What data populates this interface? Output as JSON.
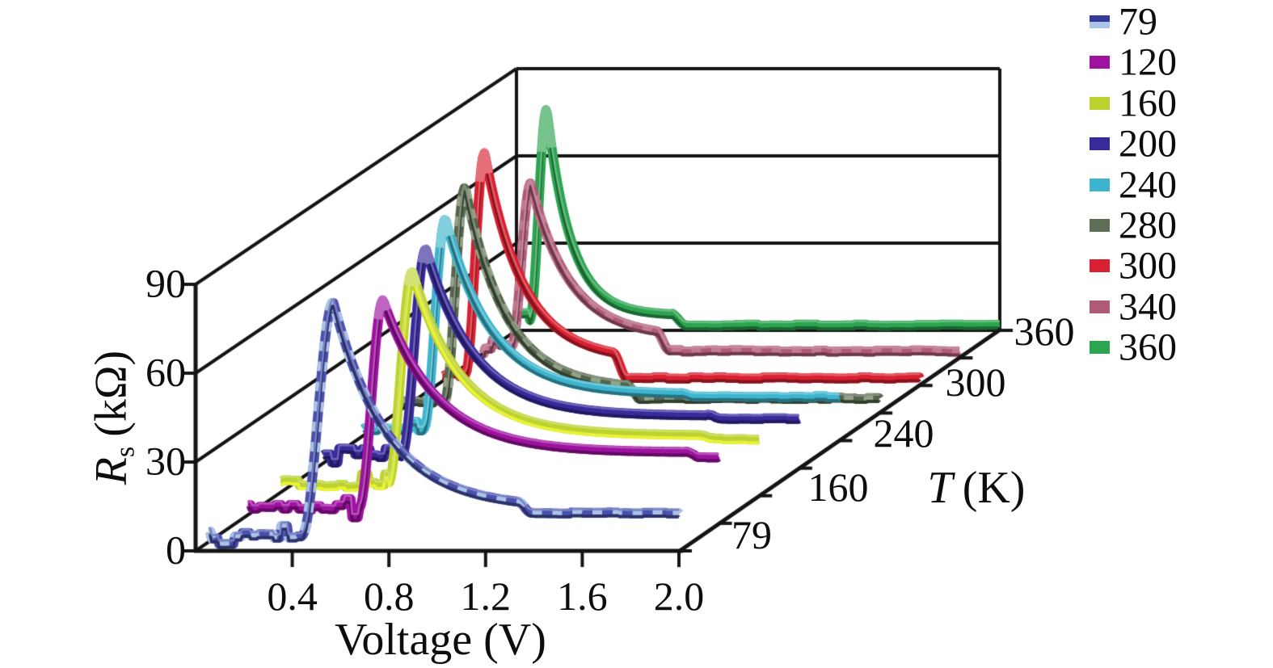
{
  "figure": {
    "background": "#ffffff",
    "line_color": "#141414",
    "text_color": "#0d0d0d"
  },
  "chart_data": {
    "type": "line",
    "projection": "3d-waterfall",
    "title": "",
    "x_axis": {
      "label": "Voltage (V)",
      "ticks": [
        0.4,
        0.8,
        1.2,
        1.6,
        2.0
      ],
      "range": [
        0,
        2.0
      ]
    },
    "z_axis": {
      "symbol": "R",
      "subscript": "s",
      "unit": "(kΩ)",
      "ticks": [
        0,
        30,
        60,
        90
      ],
      "range": [
        0,
        90
      ]
    },
    "t_axis": {
      "symbol": "T",
      "unit": "(K)",
      "tick_labels": [
        "79",
        "160",
        "240",
        "300",
        "360"
      ]
    },
    "legend": {
      "entries": [
        {
          "label": "79",
          "colors": [
            "#333d99",
            "#a9c4e6"
          ]
        },
        {
          "label": "120",
          "colors": [
            "#9e12a0"
          ]
        },
        {
          "label": "160",
          "colors": [
            "#bcd22f"
          ]
        },
        {
          "label": "200",
          "colors": [
            "#382a9b"
          ]
        },
        {
          "label": "240",
          "colors": [
            "#3eb5ce"
          ]
        },
        {
          "label": "280",
          "colors": [
            "#5d6e55"
          ]
        },
        {
          "label": "300",
          "colors": [
            "#d92030"
          ]
        },
        {
          "label": "340",
          "colors": [
            "#b05b76"
          ]
        },
        {
          "label": "360",
          "colors": [
            "#2da450"
          ]
        }
      ]
    },
    "series": [
      {
        "temperature_K": 79,
        "depth_index": 0,
        "color": "#4a50ae",
        "stripe": "#a9c4e6",
        "edge_bottom": null,
        "baseline_kohm": 5.2,
        "v_start_V": 0.055,
        "rise_width_V": 0.13,
        "v_peak_V": 0.57,
        "r_peak_kohm": 84,
        "decay_tau_V": 0.22,
        "plateau_kohm": 14.5,
        "v_step_V": 1.33,
        "r_tail_kohm": 12.8,
        "v_end_V": 2.0
      },
      {
        "temperature_K": 120,
        "depth_index": 1,
        "color": "#9e12a0",
        "stripe": null,
        "edge_bottom": null,
        "baseline_kohm": 5.0,
        "v_start_V": 0.05,
        "rise_width_V": 0.1,
        "v_peak_V": 0.61,
        "r_peak_kohm": 75.5,
        "decay_tau_V": 0.22,
        "plateau_kohm": 24.0,
        "v_step_V": 1.86,
        "r_tail_kohm": 22.5,
        "v_end_V": 2.0
      },
      {
        "temperature_K": 160,
        "depth_index": 2,
        "color": "#bcd22f",
        "stripe": null,
        "edge_bottom": "#e9f238",
        "baseline_kohm": 4.2,
        "v_start_V": 0.02,
        "rise_width_V": 0.1,
        "v_peak_V": 0.565,
        "r_peak_kohm": 76,
        "decay_tau_V": 0.2,
        "plateau_kohm": 20.5,
        "v_step_V": 1.76,
        "r_tail_kohm": 19.3,
        "v_end_V": 2.0
      },
      {
        "temperature_K": 200,
        "depth_index": 3,
        "color": "#382a9b",
        "stripe": null,
        "edge_bottom": null,
        "baseline_kohm": 4.2,
        "v_start_V": 0.03,
        "rise_width_V": 0.1,
        "v_peak_V": 0.455,
        "r_peak_kohm": 74.5,
        "decay_tau_V": 0.2,
        "plateau_kohm": 17.8,
        "v_step_V": 1.62,
        "r_tail_kohm": 16.8,
        "v_end_V": 2.0
      },
      {
        "temperature_K": 240,
        "depth_index": 4,
        "color": "#3eb5ce",
        "stripe": null,
        "edge_bottom": null,
        "baseline_kohm": 4.0,
        "v_start_V": 0.03,
        "rise_width_V": 0.09,
        "v_peak_V": 0.37,
        "r_peak_kohm": 75.5,
        "decay_tau_V": 0.19,
        "plateau_kohm": 15.8,
        "v_step_V": 1.34,
        "r_tail_kohm": 15.0,
        "v_end_V": 2.0
      },
      {
        "temperature_K": 280,
        "depth_index": 5,
        "color": "#55654d",
        "stripe": "#93a386",
        "edge_bottom": null,
        "baseline_kohm": 4.0,
        "v_start_V": 0.03,
        "rise_width_V": 0.085,
        "v_peak_V": 0.285,
        "r_peak_kohm": 77,
        "decay_tau_V": 0.17,
        "plateau_kohm": 8.2,
        "v_step_V": 0.95,
        "r_tail_kohm": 5.0,
        "v_end_V": 2.0
      },
      {
        "temperature_K": 300,
        "depth_index": 6,
        "color": "#d92030",
        "stripe": null,
        "edge_bottom": null,
        "baseline_kohm": 3.8,
        "v_start_V": 0.025,
        "rise_width_V": 0.08,
        "v_peak_V": 0.2,
        "r_peak_kohm": 79.5,
        "decay_tau_V": 0.16,
        "plateau_kohm": 8.8,
        "v_step_V": 0.73,
        "r_tail_kohm": 2.6,
        "v_end_V": 2.0
      },
      {
        "temperature_K": 340,
        "depth_index": 7,
        "color": "#b05b76",
        "stripe": "#c27992",
        "edge_bottom": null,
        "baseline_kohm": 3.8,
        "v_start_V": 0.025,
        "rise_width_V": 0.08,
        "v_peak_V": 0.225,
        "r_peak_kohm": 60,
        "decay_tau_V": 0.16,
        "plateau_kohm": 7.2,
        "v_step_V": 0.74,
        "r_tail_kohm": 2.4,
        "v_end_V": 2.0
      },
      {
        "temperature_K": 360,
        "depth_index": 8,
        "color": "#2da450",
        "stripe": null,
        "edge_bottom": null,
        "baseline_kohm": 3.5,
        "v_start_V": 0.02,
        "rise_width_V": 0.07,
        "v_peak_V": 0.125,
        "r_peak_kohm": 76,
        "decay_tau_V": 0.1,
        "plateau_kohm": 5.2,
        "v_step_V": 0.64,
        "r_tail_kohm": 1.8,
        "v_end_V": 2.0
      }
    ]
  }
}
